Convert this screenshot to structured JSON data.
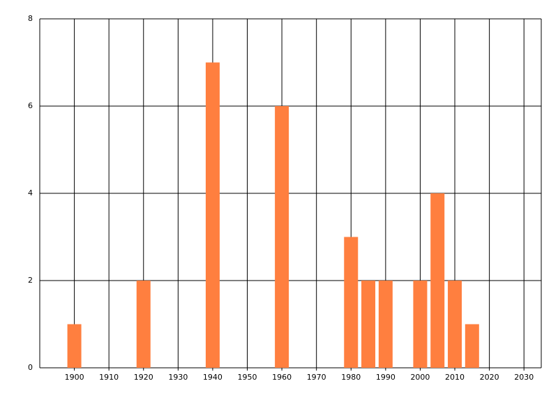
{
  "chart_data": {
    "type": "bar",
    "x": [
      1900,
      1920,
      1940,
      1960,
      1980,
      1985,
      1990,
      2000,
      2005,
      2010,
      2015
    ],
    "values": [
      1,
      2,
      7,
      6,
      3,
      2,
      2,
      2,
      4,
      2,
      1
    ],
    "color": "#ff7f3f",
    "xlim": [
      1890,
      2035
    ],
    "xticks": [
      1900,
      1910,
      1920,
      1930,
      1940,
      1950,
      1960,
      1970,
      1980,
      1990,
      2000,
      2010,
      2020,
      2030
    ],
    "ylim": [
      0,
      8
    ],
    "yticks": [
      0,
      2,
      4,
      6,
      8
    ],
    "grid": true
  }
}
